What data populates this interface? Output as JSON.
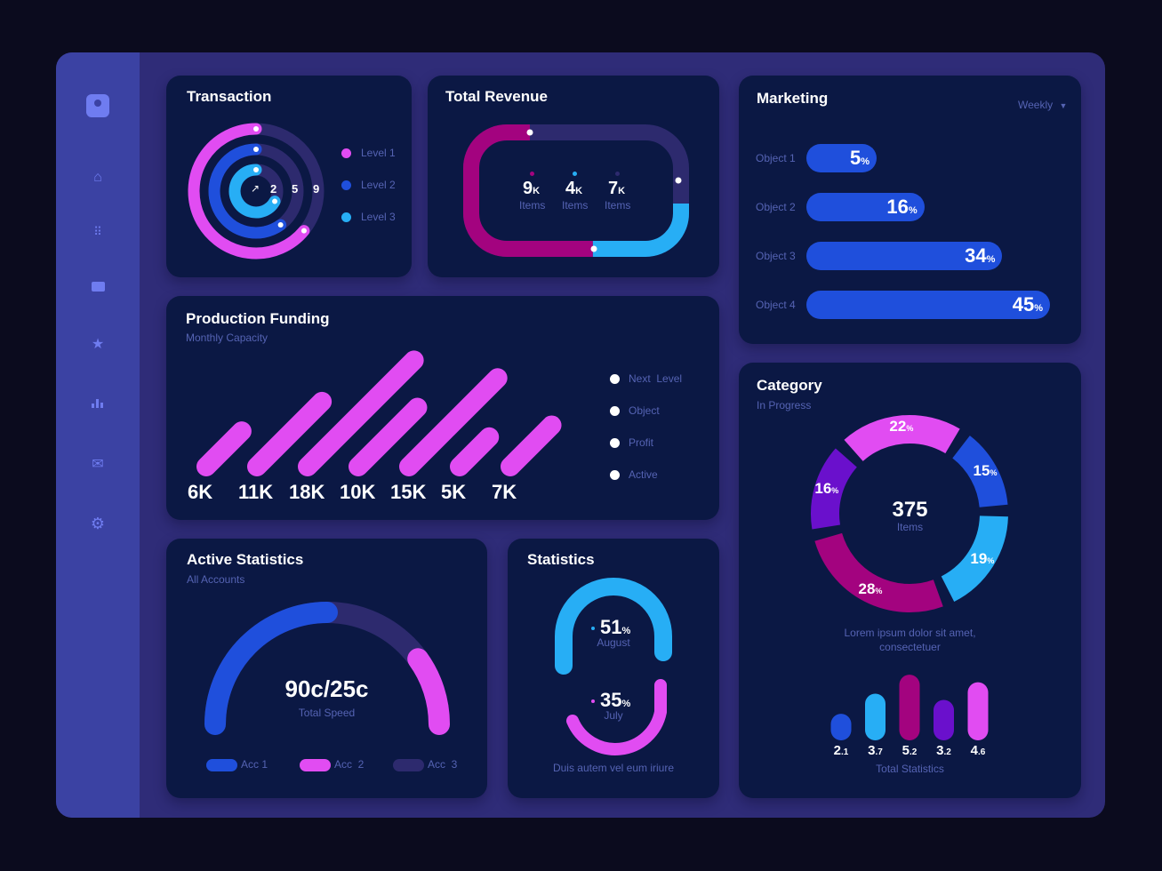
{
  "colors": {
    "pink": "#e14cf2",
    "blue": "#1f4fdc",
    "cyan": "#27aef5",
    "magenta": "#a3037f",
    "purple": "#6a10cc",
    "track": "#2d2a6e",
    "card": "#0b1844"
  },
  "sidebar": {
    "items": [
      {
        "icon": "user-avatar-icon"
      },
      {
        "icon": "home-icon"
      },
      {
        "icon": "grid-icon"
      },
      {
        "icon": "chat-icon"
      },
      {
        "icon": "star-icon"
      },
      {
        "icon": "bar-chart-icon"
      },
      {
        "icon": "mail-icon"
      },
      {
        "icon": "gear-icon"
      }
    ]
  },
  "transaction": {
    "title": "Transaction",
    "rings": [
      {
        "label": "Level 1",
        "fill": 0.64,
        "color": "#e14cf2"
      },
      {
        "label": "Level 2",
        "fill": 0.6,
        "color": "#1f4fdc"
      },
      {
        "label": "Level 3",
        "fill": 0.67,
        "color": "#27aef5"
      }
    ],
    "scale": [
      "2",
      "5",
      "9"
    ],
    "center_icon": "arrow-up-right-icon"
  },
  "revenue": {
    "title": "Total Revenue",
    "items": [
      {
        "value": "9",
        "unit": "K",
        "label": "Items",
        "color": "#a3037f"
      },
      {
        "value": "4",
        "unit": "K",
        "label": "Items",
        "color": "#27aef5"
      },
      {
        "value": "7",
        "unit": "K",
        "label": "Items",
        "color": "#2d2a6e"
      }
    ]
  },
  "marketing": {
    "title": "Marketing",
    "period": "Weekly",
    "rows": [
      {
        "label": "Object 1",
        "value": 5
      },
      {
        "label": "Object 2",
        "value": 16
      },
      {
        "label": "Object 3",
        "value": 34
      },
      {
        "label": "Object 4",
        "value": 45
      }
    ],
    "unit": "%"
  },
  "funding": {
    "title": "Production Funding",
    "subtitle": "Monthly Capacity",
    "bars": [
      {
        "label": "6K",
        "value": 6
      },
      {
        "label": "11K",
        "value": 11
      },
      {
        "label": "18K",
        "value": 18
      },
      {
        "label": "10K",
        "value": 10
      },
      {
        "label": "15K",
        "value": 15
      },
      {
        "label": "5K",
        "value": 5
      },
      {
        "label": "7K",
        "value": 7
      }
    ],
    "legend": [
      "Next  Level",
      "Object",
      "Profit",
      "Active"
    ]
  },
  "category": {
    "title": "Category",
    "subtitle": "In  Progress",
    "total": "375",
    "total_label": "Items",
    "segments": [
      {
        "value": 22,
        "color": "#e14cf2"
      },
      {
        "value": 15,
        "color": "#1f4fdc"
      },
      {
        "value": 19,
        "color": "#27aef5"
      },
      {
        "value": 28,
        "color": "#a3037f"
      },
      {
        "value": 16,
        "color": "#6a10cc"
      }
    ],
    "unit": "%",
    "caption": [
      "Lorem ipsum dolor sit amet,",
      "consectetuer"
    ],
    "mini": [
      {
        "int": "2",
        "dec": ".1",
        "value": 2.1,
        "color": "#1f4fdc"
      },
      {
        "int": "3",
        "dec": ".7",
        "value": 3.7,
        "color": "#27aef5"
      },
      {
        "int": "5",
        "dec": ".2",
        "value": 5.2,
        "color": "#a3037f"
      },
      {
        "int": "3",
        "dec": ".2",
        "value": 3.2,
        "color": "#6a10cc"
      },
      {
        "int": "4",
        "dec": ".6",
        "value": 4.6,
        "color": "#e14cf2"
      }
    ],
    "mini_caption": "Total Statistics"
  },
  "active": {
    "title": "Active Statistics",
    "subtitle": "All Accounts",
    "value": "90c/25c",
    "label": "Total Speed",
    "segments": [
      {
        "name": "Acc 1",
        "from": 0,
        "to": 0.5,
        "color": "#1f4fdc"
      },
      {
        "name": "Acc  3",
        "from": 0.5,
        "to": 0.79,
        "color": "#2d2a6e"
      },
      {
        "name": "Acc  2",
        "from": 0.79,
        "to": 1,
        "color": "#e14cf2"
      }
    ],
    "legend": [
      {
        "name": "Acc 1",
        "color": "#1f4fdc"
      },
      {
        "name": "Acc  2",
        "color": "#e14cf2"
      },
      {
        "name": "Acc  3",
        "color": "#2d2a6e"
      }
    ]
  },
  "statistics": {
    "title": "Statistics",
    "items": [
      {
        "value": "51",
        "unit": "%",
        "label": "August",
        "color": "#27aef5"
      },
      {
        "value": "35",
        "unit": "%",
        "label": "July",
        "color": "#e14cf2"
      }
    ],
    "caption": "Duis autem vel eum iriure"
  }
}
